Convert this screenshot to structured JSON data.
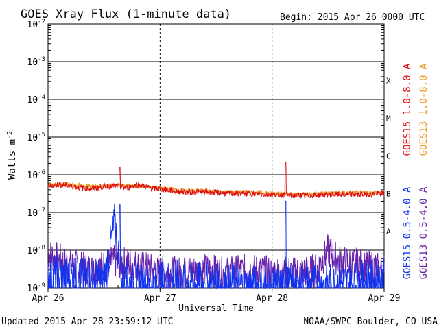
{
  "header": {
    "title": "GOES Xray Flux (1-minute data)",
    "begin": "Begin:  2015 Apr 26 0000 UTC"
  },
  "footer": {
    "updated": "Updated 2015 Apr 28 23:59:12 UTC",
    "credit": "NOAA/SWPC Boulder, CO USA"
  },
  "chart_data": {
    "type": "line",
    "title": "GOES Xray Flux (1-minute data)",
    "xlabel": "Universal Time",
    "ylabel_main": "Watts m",
    "ylabel_exp": "-2",
    "y_scale": "log",
    "ylim": [
      1e-09,
      0.01
    ],
    "xlim": [
      "2015-04-26",
      "2015-04-29"
    ],
    "x_ticks": [
      "Apr 26",
      "Apr 27",
      "Apr 28",
      "Apr 29"
    ],
    "y_ticks": [
      {
        "base": "10",
        "exp": "-9"
      },
      {
        "base": "10",
        "exp": "-8"
      },
      {
        "base": "10",
        "exp": "-7"
      },
      {
        "base": "10",
        "exp": "-6"
      },
      {
        "base": "10",
        "exp": "-5"
      },
      {
        "base": "10",
        "exp": "-4"
      },
      {
        "base": "10",
        "exp": "-3"
      },
      {
        "base": "10",
        "exp": "-2"
      }
    ],
    "flare_classes": [
      {
        "label": "A",
        "flux": 1e-08
      },
      {
        "label": "B",
        "flux": 1e-07
      },
      {
        "label": "C",
        "flux": 1e-06
      },
      {
        "label": "M",
        "flux": 1e-05
      },
      {
        "label": "X",
        "flux": 0.0001
      }
    ],
    "grid": true,
    "legend_position": "right",
    "series": [
      {
        "name": "GOES15 1.0-8.0 A",
        "color": "#dd1111",
        "x": [
          0,
          0.1,
          0.2,
          0.3,
          0.4,
          0.5,
          0.6,
          0.7,
          0.8,
          0.9,
          1.0,
          1.2,
          1.4,
          1.6,
          1.8,
          2.0,
          2.1,
          2.2,
          2.4,
          2.6,
          2.8,
          3.0
        ],
        "y": [
          5e-07,
          5.5e-07,
          5e-07,
          4.5e-07,
          4.3e-07,
          4.8e-07,
          5e-07,
          4.5e-07,
          5.5e-07,
          4.5e-07,
          4.2e-07,
          3.5e-07,
          3.5e-07,
          3.2e-07,
          3.2e-07,
          3e-07,
          2.9e-07,
          2.8e-07,
          2.9e-07,
          3e-07,
          3e-07,
          3.2e-07
        ]
      },
      {
        "name": "GOES13 1.0-8.0 A",
        "color": "#ee9922",
        "x": [
          0,
          0.2,
          0.4,
          0.6,
          0.8,
          1.0,
          1.2,
          1.4,
          1.6,
          1.8,
          2.0,
          2.2,
          2.4,
          2.6,
          2.8,
          3.0
        ],
        "y": [
          5.5e-07,
          5.5e-07,
          4.8e-07,
          5.2e-07,
          5e-07,
          4.5e-07,
          3.8e-07,
          3.8e-07,
          3.5e-07,
          3.5e-07,
          3.3e-07,
          3e-07,
          3.2e-07,
          3.3e-07,
          3.3e-07,
          3.5e-07
        ]
      },
      {
        "name": "GOES15 0.5-4.0 A",
        "color": "#1133ee",
        "x": [
          0,
          0.5,
          0.6,
          0.65,
          0.9,
          1.0,
          1.5,
          2.0,
          2.5,
          3.0
        ],
        "y": [
          2e-09,
          1.5e-09,
          6e-08,
          1.5e-09,
          1e-09,
          1.5e-09,
          1.2e-09,
          1e-09,
          1.2e-09,
          1.5e-09
        ]
      },
      {
        "name": "GOES13 0.5-4.0 A",
        "color": "#6622aa",
        "x": [
          0,
          0.2,
          0.4,
          0.6,
          0.8,
          1.0,
          1.2,
          1.4,
          1.6,
          1.8,
          2.0,
          2.2,
          2.4,
          2.5,
          2.6,
          2.8,
          3.0
        ],
        "y": [
          8e-09,
          4e-09,
          3e-09,
          5e-09,
          4e-09,
          2.5e-09,
          2.5e-09,
          3e-09,
          2.5e-09,
          3e-09,
          2.5e-09,
          2.5e-09,
          3e-09,
          1e-08,
          5e-09,
          4e-09,
          3e-09
        ]
      }
    ],
    "annotations": [
      {
        "series": "GOES15 1.0-8.0 A",
        "x": 0.64,
        "y": 1.6e-06
      },
      {
        "series": "GOES15 1.0-8.0 A",
        "x": 2.12,
        "y": 2.1e-06
      },
      {
        "series": "GOES15 0.5-4.0 A",
        "x": 0.64,
        "y": 1.6e-07
      },
      {
        "series": "GOES15 0.5-4.0 A",
        "x": 2.12,
        "y": 2e-07
      }
    ]
  }
}
